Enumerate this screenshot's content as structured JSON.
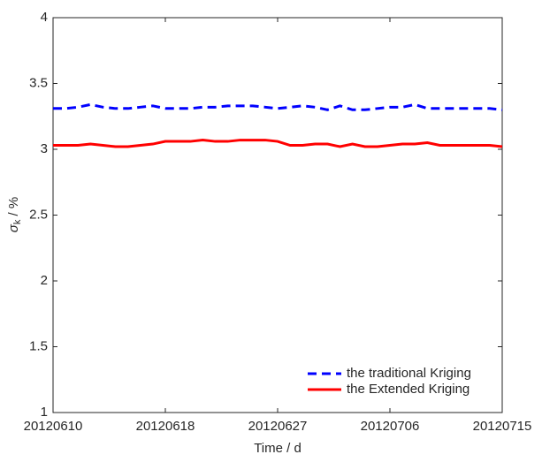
{
  "chart_data": {
    "type": "line",
    "x_label": "Time / d",
    "y_label": {
      "symbol": "σ",
      "subscript": "k",
      "unit": " / %"
    },
    "categories": [
      "20120610",
      null,
      null,
      null,
      null,
      null,
      null,
      null,
      null,
      "20120618",
      null,
      null,
      null,
      null,
      null,
      null,
      null,
      null,
      "20120627",
      null,
      null,
      null,
      null,
      null,
      null,
      null,
      null,
      "20120706",
      null,
      null,
      null,
      null,
      null,
      null,
      null,
      null,
      "20120715"
    ],
    "series": [
      {
        "name": "the traditional Kriging",
        "color": "#0000ff",
        "line_style": "dashed",
        "values": [
          3.31,
          3.31,
          3.32,
          3.34,
          3.32,
          3.31,
          3.31,
          3.32,
          3.33,
          3.31,
          3.31,
          3.31,
          3.32,
          3.32,
          3.33,
          3.33,
          3.33,
          3.32,
          3.31,
          3.32,
          3.33,
          3.32,
          3.3,
          3.33,
          3.3,
          3.3,
          3.31,
          3.32,
          3.32,
          3.34,
          3.31,
          3.31,
          3.31,
          3.31,
          3.31,
          3.31,
          3.3
        ]
      },
      {
        "name": "the Extended Kriging",
        "color": "#ff0000",
        "line_style": "solid",
        "values": [
          3.03,
          3.03,
          3.03,
          3.04,
          3.03,
          3.02,
          3.02,
          3.03,
          3.04,
          3.06,
          3.06,
          3.06,
          3.07,
          3.06,
          3.06,
          3.07,
          3.07,
          3.07,
          3.06,
          3.03,
          3.03,
          3.04,
          3.04,
          3.02,
          3.04,
          3.02,
          3.02,
          3.03,
          3.04,
          3.04,
          3.05,
          3.03,
          3.03,
          3.03,
          3.03,
          3.03,
          3.02
        ]
      }
    ],
    "ylim": [
      1,
      4
    ],
    "yticks": [
      1,
      1.5,
      2,
      2.5,
      3,
      3.5,
      4
    ],
    "grid": false,
    "legend": "lower right"
  }
}
